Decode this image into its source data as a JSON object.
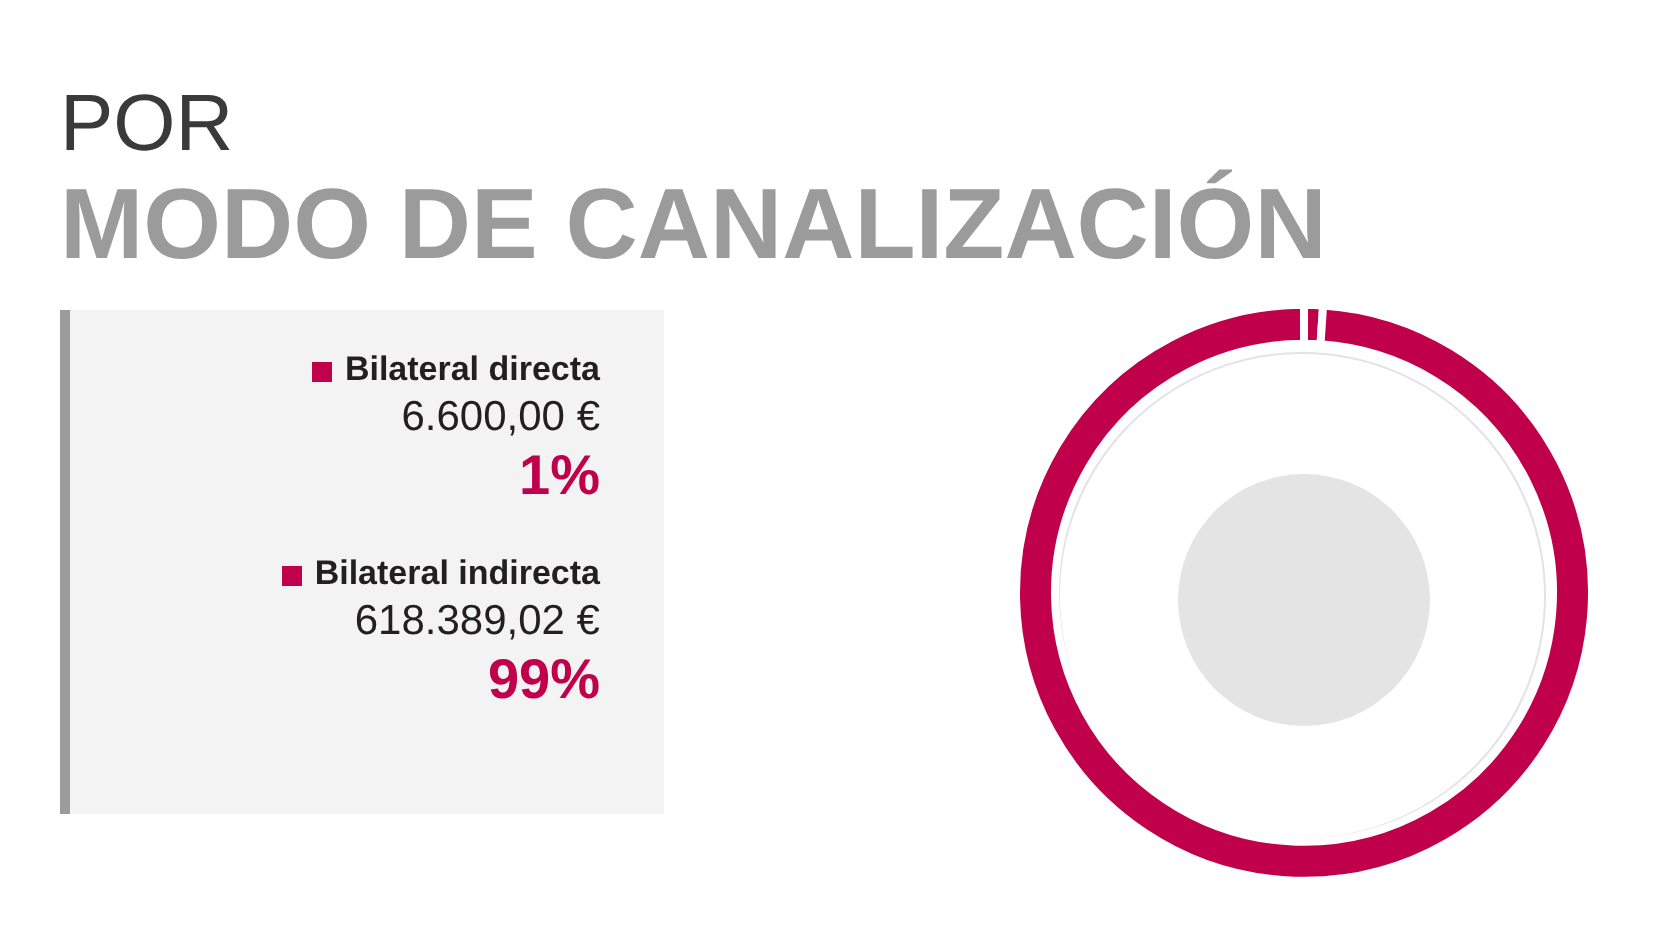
{
  "chart_data": {
    "type": "donut",
    "title": "POR",
    "subtitle": "MODO DE CANALIZACIÓN",
    "categories": [
      "Bilateral directa",
      "Bilateral indirecta"
    ],
    "values": [
      6600,
      618389.02
    ],
    "value_labels": [
      "6.600,00 €",
      "618.389,02 €"
    ],
    "annotations": [
      "1%",
      "99%"
    ],
    "colors": [
      "#c0004b",
      "#c0004b"
    ],
    "legend": "left"
  }
}
